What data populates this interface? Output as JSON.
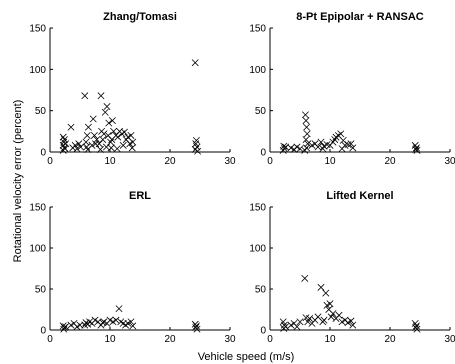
{
  "figure": {
    "xlabel": "Vehicle speed (m/s)",
    "ylabel": "Rotational velocity error (percent)"
  },
  "chart_data": [
    {
      "type": "scatter",
      "title": "Zhang/Tomasi",
      "xlim": [
        0,
        30
      ],
      "ylim": [
        0,
        150
      ],
      "xticks": [
        0,
        10,
        20,
        30
      ],
      "yticks": [
        0,
        50,
        100,
        150
      ],
      "marker": "x",
      "points": [
        [
          2.2,
          18
        ],
        [
          2.3,
          12
        ],
        [
          2.2,
          8
        ],
        [
          2.4,
          5
        ],
        [
          2.2,
          2
        ],
        [
          2.6,
          10
        ],
        [
          2.5,
          4
        ],
        [
          2.4,
          15
        ],
        [
          3.5,
          30
        ],
        [
          3.8,
          5
        ],
        [
          4.2,
          8
        ],
        [
          4.5,
          4
        ],
        [
          4.8,
          10
        ],
        [
          5.1,
          6
        ],
        [
          5.8,
          68
        ],
        [
          6.0,
          12
        ],
        [
          6.2,
          20
        ],
        [
          6.1,
          6
        ],
        [
          6.4,
          30
        ],
        [
          6.3,
          3
        ],
        [
          7.0,
          8
        ],
        [
          7.2,
          40
        ],
        [
          7.4,
          20
        ],
        [
          7.6,
          10
        ],
        [
          7.8,
          15
        ],
        [
          8.2,
          10
        ],
        [
          8.5,
          68
        ],
        [
          8.6,
          25
        ],
        [
          8.8,
          15
        ],
        [
          8.4,
          3
        ],
        [
          9.0,
          22
        ],
        [
          9.2,
          48
        ],
        [
          9.5,
          55
        ],
        [
          9.7,
          20
        ],
        [
          9.8,
          35
        ],
        [
          9.4,
          6
        ],
        [
          10.1,
          12
        ],
        [
          10.3,
          15
        ],
        [
          10.4,
          38
        ],
        [
          10.6,
          25
        ],
        [
          10.2,
          5
        ],
        [
          11.0,
          20
        ],
        [
          11.3,
          18
        ],
        [
          11.6,
          25
        ],
        [
          11.2,
          4
        ],
        [
          12.0,
          22
        ],
        [
          12.4,
          24
        ],
        [
          12.7,
          15
        ],
        [
          12.2,
          8
        ],
        [
          13.0,
          18
        ],
        [
          13.5,
          20
        ],
        [
          13.3,
          10
        ],
        [
          13.7,
          5
        ],
        [
          13.8,
          12
        ],
        [
          24.2,
          108
        ],
        [
          24.4,
          14
        ],
        [
          24.3,
          10
        ],
        [
          24.5,
          6
        ],
        [
          24.2,
          3
        ],
        [
          24.6,
          1
        ]
      ]
    },
    {
      "type": "scatter",
      "title": "8-Pt Epipolar + RANSAC",
      "xlim": [
        0,
        30
      ],
      "ylim": [
        0,
        150
      ],
      "xticks": [
        0,
        10,
        20,
        30
      ],
      "yticks": [
        0,
        50,
        100,
        150
      ],
      "marker": "x",
      "points": [
        [
          2.3,
          7
        ],
        [
          2.4,
          4
        ],
        [
          2.2,
          2
        ],
        [
          2.6,
          6
        ],
        [
          3.5,
          5
        ],
        [
          4.0,
          3
        ],
        [
          4.5,
          6
        ],
        [
          5.0,
          4
        ],
        [
          5.9,
          45
        ],
        [
          6.0,
          38
        ],
        [
          6.1,
          30
        ],
        [
          6.2,
          22
        ],
        [
          6.0,
          15
        ],
        [
          6.3,
          10
        ],
        [
          6.1,
          5
        ],
        [
          5.8,
          2
        ],
        [
          7.0,
          8
        ],
        [
          7.5,
          10
        ],
        [
          8.0,
          6
        ],
        [
          8.5,
          12
        ],
        [
          8.8,
          4
        ],
        [
          9.0,
          7
        ],
        [
          9.5,
          9
        ],
        [
          10.0,
          8
        ],
        [
          10.5,
          12
        ],
        [
          10.8,
          15
        ],
        [
          11.0,
          18
        ],
        [
          11.4,
          20
        ],
        [
          11.8,
          22
        ],
        [
          12.2,
          14
        ],
        [
          12.5,
          8
        ],
        [
          12.0,
          4
        ],
        [
          13.0,
          9
        ],
        [
          13.5,
          10
        ],
        [
          13.8,
          5
        ],
        [
          24.2,
          8
        ],
        [
          24.4,
          5
        ],
        [
          24.3,
          3
        ],
        [
          24.5,
          2
        ]
      ]
    },
    {
      "type": "scatter",
      "title": "ERL",
      "xlim": [
        0,
        30
      ],
      "ylim": [
        0,
        150
      ],
      "xticks": [
        0,
        10,
        20,
        30
      ],
      "yticks": [
        0,
        50,
        100,
        150
      ],
      "marker": "x",
      "points": [
        [
          2.2,
          5
        ],
        [
          2.4,
          3
        ],
        [
          2.3,
          1
        ],
        [
          2.6,
          4
        ],
        [
          3.5,
          6
        ],
        [
          4.0,
          8
        ],
        [
          4.5,
          4
        ],
        [
          5.0,
          6
        ],
        [
          5.8,
          6
        ],
        [
          6.0,
          9
        ],
        [
          6.3,
          7
        ],
        [
          6.6,
          10
        ],
        [
          7.0,
          8
        ],
        [
          7.5,
          12
        ],
        [
          8.0,
          10
        ],
        [
          8.5,
          6
        ],
        [
          8.8,
          9
        ],
        [
          9.0,
          10
        ],
        [
          9.5,
          8
        ],
        [
          10.0,
          12
        ],
        [
          10.5,
          10
        ],
        [
          11.0,
          12
        ],
        [
          11.5,
          26
        ],
        [
          11.8,
          10
        ],
        [
          12.2,
          8
        ],
        [
          12.6,
          6
        ],
        [
          13.0,
          8
        ],
        [
          13.5,
          10
        ],
        [
          13.8,
          5
        ],
        [
          24.2,
          7
        ],
        [
          24.4,
          5
        ],
        [
          24.3,
          3
        ],
        [
          24.5,
          1
        ]
      ]
    },
    {
      "type": "scatter",
      "title": "Lifted Kernel",
      "xlim": [
        0,
        30
      ],
      "ylim": [
        0,
        150
      ],
      "xticks": [
        0,
        10,
        20,
        30
      ],
      "yticks": [
        0,
        50,
        100,
        150
      ],
      "marker": "x",
      "points": [
        [
          2.2,
          10
        ],
        [
          2.4,
          6
        ],
        [
          2.3,
          2
        ],
        [
          2.6,
          4
        ],
        [
          3.5,
          6
        ],
        [
          4.0,
          8
        ],
        [
          4.5,
          4
        ],
        [
          5.0,
          10
        ],
        [
          5.8,
          63
        ],
        [
          6.0,
          15
        ],
        [
          6.3,
          10
        ],
        [
          6.6,
          14
        ],
        [
          7.0,
          8
        ],
        [
          7.5,
          12
        ],
        [
          8.0,
          16
        ],
        [
          8.5,
          52
        ],
        [
          8.8,
          10
        ],
        [
          9.0,
          12
        ],
        [
          9.3,
          45
        ],
        [
          9.5,
          30
        ],
        [
          9.8,
          25
        ],
        [
          10.0,
          32
        ],
        [
          10.2,
          16
        ],
        [
          10.5,
          20
        ],
        [
          11.0,
          14
        ],
        [
          11.5,
          18
        ],
        [
          12.0,
          10
        ],
        [
          12.5,
          12
        ],
        [
          13.0,
          9
        ],
        [
          13.5,
          11
        ],
        [
          13.8,
          6
        ],
        [
          24.2,
          8
        ],
        [
          24.4,
          5
        ],
        [
          24.3,
          3
        ],
        [
          24.5,
          1
        ]
      ]
    }
  ]
}
